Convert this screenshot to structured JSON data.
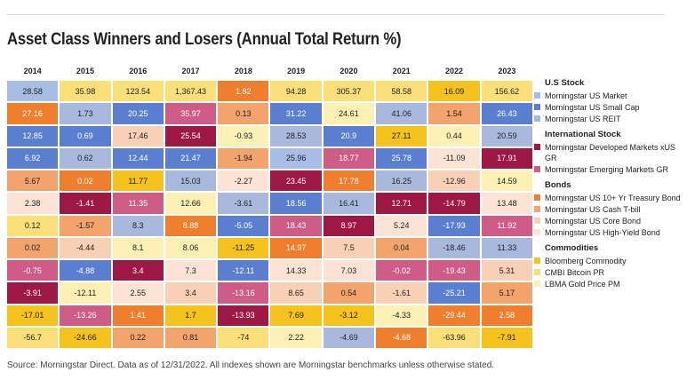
{
  "title": "Asset Class Winners and Losers (Annual Total Return %)",
  "footer": "Source: Morningstar Direct. Data as of 12/31/2022. All indexes shown are Morningstar benchmarks unless otherwise stated.",
  "colors": {
    "mkt": "#a8bde6",
    "small": "#5b7fd0",
    "reit": "#a9b9de",
    "dev": "#9e1845",
    "emerg": "#cf5c86",
    "t10": "#ef7f2c",
    "tbill": "#f2a46c",
    "core": "#f8d0b5",
    "hy": "#fce3d4",
    "bbg": "#f6c21d",
    "btc": "#fbe07a",
    "gold": "#fdf0b4"
  },
  "text_colors": {
    "dark": "#222222",
    "light": "#ffffff"
  },
  "legend": [
    {
      "title": "U.S Stock",
      "items": [
        {
          "key": "mkt",
          "label": "Morningstar US Market"
        },
        {
          "key": "small",
          "label": "Morningstar US Small Cap"
        },
        {
          "key": "reit",
          "label": "Morningstar US REIT"
        }
      ]
    },
    {
      "title": "International Stock",
      "items": [
        {
          "key": "dev",
          "label": "Morningstar Developed Markets xUS GR"
        },
        {
          "key": "emerg",
          "label": "Morningstar Emerging Markets GR"
        }
      ]
    },
    {
      "title": "Bonds",
      "items": [
        {
          "key": "t10",
          "label": "Morningstar US 10+ Yr Treasury Bond"
        },
        {
          "key": "tbill",
          "label": "Morningstar US Cash T-bill"
        },
        {
          "key": "core",
          "label": "Morningstar US Core Bond"
        },
        {
          "key": "hy",
          "label": "Morningstar US High-Yield Bond"
        }
      ]
    },
    {
      "title": "Commodities",
      "items": [
        {
          "key": "bbg",
          "label": "Bloomberg Commodity"
        },
        {
          "key": "btc",
          "label": "CMBI Bitcoin PR"
        },
        {
          "key": "gold",
          "label": "LBMA Gold Price PM"
        }
      ]
    }
  ],
  "chart_data": {
    "type": "table",
    "title": "Asset Class Winners and Losers (Annual Total Return %)",
    "categories": [
      "2014",
      "2015",
      "2016",
      "2017",
      "2018",
      "2019",
      "2020",
      "2021",
      "2022",
      "2023"
    ],
    "columns": [
      {
        "year": "2014",
        "cells": [
          {
            "v": "28.58",
            "k": "mkt"
          },
          {
            "v": "27.16",
            "k": "t10"
          },
          {
            "v": "12.85",
            "k": "small"
          },
          {
            "v": "6.92",
            "k": "small"
          },
          {
            "v": "5.67",
            "k": "tbill"
          },
          {
            "v": "2.38",
            "k": "hy"
          },
          {
            "v": "0.12",
            "k": "btc"
          },
          {
            "v": "0.02",
            "k": "tbill"
          },
          {
            "v": "-0.75",
            "k": "emerg"
          },
          {
            "v": "-3.91",
            "k": "dev"
          },
          {
            "v": "-17.01",
            "k": "bbg"
          },
          {
            "v": "-56.7",
            "k": "btc"
          }
        ]
      },
      {
        "year": "2015",
        "cells": [
          {
            "v": "35.98",
            "k": "btc"
          },
          {
            "v": "1.73",
            "k": "reit"
          },
          {
            "v": "0.69",
            "k": "small"
          },
          {
            "v": "0.62",
            "k": "reit"
          },
          {
            "v": "0.02",
            "k": "t10"
          },
          {
            "v": "-1.41",
            "k": "dev"
          },
          {
            "v": "-1.57",
            "k": "tbill"
          },
          {
            "v": "-4.44",
            "k": "core"
          },
          {
            "v": "-4.88",
            "k": "small"
          },
          {
            "v": "-12.11",
            "k": "gold"
          },
          {
            "v": "-13.26",
            "k": "emerg"
          },
          {
            "v": "-24.66",
            "k": "bbg"
          }
        ]
      },
      {
        "year": "2016",
        "cells": [
          {
            "v": "123.54",
            "k": "btc"
          },
          {
            "v": "20.25",
            "k": "small"
          },
          {
            "v": "17.46",
            "k": "core"
          },
          {
            "v": "12.44",
            "k": "small"
          },
          {
            "v": "11.77",
            "k": "bbg"
          },
          {
            "v": "11.35",
            "k": "emerg"
          },
          {
            "v": "8.3",
            "k": "reit"
          },
          {
            "v": "8.1",
            "k": "gold"
          },
          {
            "v": "3.4",
            "k": "dev"
          },
          {
            "v": "2.55",
            "k": "hy"
          },
          {
            "v": "1.41",
            "k": "t10"
          },
          {
            "v": "0.22",
            "k": "tbill"
          }
        ]
      },
      {
        "year": "2017",
        "cells": [
          {
            "v": "1,367.43",
            "k": "btc"
          },
          {
            "v": "35.97",
            "k": "emerg"
          },
          {
            "v": "25.54",
            "k": "dev"
          },
          {
            "v": "21.47",
            "k": "small"
          },
          {
            "v": "15.03",
            "k": "reit"
          },
          {
            "v": "12.66",
            "k": "gold"
          },
          {
            "v": "8.88",
            "k": "t10"
          },
          {
            "v": "8.06",
            "k": "gold"
          },
          {
            "v": "7.3",
            "k": "hy"
          },
          {
            "v": "3.4",
            "k": "core"
          },
          {
            "v": "1.7",
            "k": "bbg"
          },
          {
            "v": "0.81",
            "k": "tbill"
          }
        ]
      },
      {
        "year": "2018",
        "cells": [
          {
            "v": "1.82",
            "k": "t10"
          },
          {
            "v": "0.13",
            "k": "tbill"
          },
          {
            "v": "-0.93",
            "k": "gold"
          },
          {
            "v": "-1.94",
            "k": "tbill"
          },
          {
            "v": "-2.27",
            "k": "hy"
          },
          {
            "v": "-3.61",
            "k": "reit"
          },
          {
            "v": "-5.05",
            "k": "small"
          },
          {
            "v": "-11.25",
            "k": "bbg"
          },
          {
            "v": "-12.11",
            "k": "small"
          },
          {
            "v": "-13.16",
            "k": "emerg"
          },
          {
            "v": "-13.93",
            "k": "dev"
          },
          {
            "v": "-74",
            "k": "btc"
          }
        ]
      },
      {
        "year": "2019",
        "cells": [
          {
            "v": "94.28",
            "k": "btc"
          },
          {
            "v": "31.22",
            "k": "small"
          },
          {
            "v": "28.53",
            "k": "reit"
          },
          {
            "v": "25.96",
            "k": "mkt"
          },
          {
            "v": "23.45",
            "k": "dev"
          },
          {
            "v": "18.56",
            "k": "small"
          },
          {
            "v": "18.43",
            "k": "emerg"
          },
          {
            "v": "14.97",
            "k": "t10"
          },
          {
            "v": "14.33",
            "k": "hy"
          },
          {
            "v": "8.65",
            "k": "core"
          },
          {
            "v": "7.69",
            "k": "bbg"
          },
          {
            "v": "2.22",
            "k": "gold"
          }
        ]
      },
      {
        "year": "2020",
        "cells": [
          {
            "v": "305.37",
            "k": "btc"
          },
          {
            "v": "24.61",
            "k": "gold"
          },
          {
            "v": "20.9",
            "k": "small"
          },
          {
            "v": "18.77",
            "k": "emerg"
          },
          {
            "v": "17.78",
            "k": "t10"
          },
          {
            "v": "16.41",
            "k": "reit"
          },
          {
            "v": "8.97",
            "k": "dev"
          },
          {
            "v": "7.5",
            "k": "core"
          },
          {
            "v": "7.03",
            "k": "hy"
          },
          {
            "v": "0.54",
            "k": "tbill"
          },
          {
            "v": "-3.12",
            "k": "bbg"
          },
          {
            "v": "-4.69",
            "k": "reit"
          }
        ]
      },
      {
        "year": "2021",
        "cells": [
          {
            "v": "58.58",
            "k": "btc"
          },
          {
            "v": "41.06",
            "k": "reit"
          },
          {
            "v": "27.11",
            "k": "bbg"
          },
          {
            "v": "25.78",
            "k": "small"
          },
          {
            "v": "16.25",
            "k": "reit"
          },
          {
            "v": "12.71",
            "k": "dev"
          },
          {
            "v": "5.24",
            "k": "hy"
          },
          {
            "v": "0.04",
            "k": "tbill"
          },
          {
            "v": "-0.02",
            "k": "emerg"
          },
          {
            "v": "-1.61",
            "k": "core"
          },
          {
            "v": "-4.33",
            "k": "gold"
          },
          {
            "v": "-4.68",
            "k": "t10"
          }
        ]
      },
      {
        "year": "2022",
        "cells": [
          {
            "v": "16.09",
            "k": "bbg"
          },
          {
            "v": "1.54",
            "k": "tbill"
          },
          {
            "v": "0.44",
            "k": "gold"
          },
          {
            "v": "-11.09",
            "k": "hy"
          },
          {
            "v": "-12.96",
            "k": "core"
          },
          {
            "v": "-14.79",
            "k": "dev"
          },
          {
            "v": "-17.93",
            "k": "small"
          },
          {
            "v": "-18.46",
            "k": "reit"
          },
          {
            "v": "-19.43",
            "k": "emerg"
          },
          {
            "v": "-25.21",
            "k": "small"
          },
          {
            "v": "-29.44",
            "k": "t10"
          },
          {
            "v": "-63.96",
            "k": "btc"
          }
        ]
      },
      {
        "year": "2023",
        "cells": [
          {
            "v": "156.62",
            "k": "btc"
          },
          {
            "v": "26.43",
            "k": "small"
          },
          {
            "v": "20.59",
            "k": "reit"
          },
          {
            "v": "17.91",
            "k": "dev"
          },
          {
            "v": "14.59",
            "k": "gold"
          },
          {
            "v": "13.48",
            "k": "hy"
          },
          {
            "v": "11.92",
            "k": "emerg"
          },
          {
            "v": "11.33",
            "k": "reit"
          },
          {
            "v": "5.31",
            "k": "core"
          },
          {
            "v": "5.17",
            "k": "tbill"
          },
          {
            "v": "2.58",
            "k": "t10"
          },
          {
            "v": "-7.91",
            "k": "bbg"
          }
        ]
      }
    ]
  }
}
